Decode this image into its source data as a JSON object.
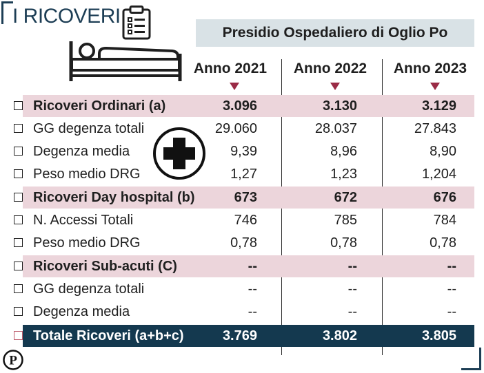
{
  "title": "I RICOVERI",
  "hospital": "Presidio Ospedaliero di Oglio Po",
  "years": [
    "Anno 2021",
    "Anno 2022",
    "Anno 2023"
  ],
  "rows": [
    {
      "label": "Ricoveri Ordinari (a)",
      "type": "sub",
      "values": [
        "3.096",
        "3.130",
        "3.129"
      ]
    },
    {
      "label": "GG degenza totali",
      "type": "item",
      "values": [
        "29.060",
        "28.037",
        "27.843"
      ]
    },
    {
      "label": "Degenza media",
      "type": "item",
      "values": [
        "9,39",
        "8,96",
        "8,90"
      ]
    },
    {
      "label": "Peso medio DRG",
      "type": "item",
      "values": [
        "1,27",
        "1,23",
        "1,204"
      ]
    },
    {
      "label": "Ricoveri Day hospital (b)",
      "type": "sub",
      "values": [
        "673",
        "672",
        "676"
      ]
    },
    {
      "label": "N. Accessi Totali",
      "type": "item",
      "values": [
        "746",
        "785",
        "784"
      ]
    },
    {
      "label": "Peso medio DRG",
      "type": "item",
      "values": [
        "0,78",
        "0,78",
        "0,78"
      ]
    },
    {
      "label": "Ricoveri Sub-acuti (C)",
      "type": "sub",
      "values": [
        "--",
        "--",
        "--"
      ]
    },
    {
      "label": "GG degenza totali",
      "type": "item",
      "values": [
        "--",
        "--",
        "--"
      ]
    },
    {
      "label": "Degenza media",
      "type": "item",
      "values": [
        "--",
        "--",
        "--"
      ]
    },
    {
      "label": "Totale Ricoveri (a+b+c)",
      "type": "total",
      "values": [
        "3.769",
        "3.802",
        "3.805"
      ]
    }
  ],
  "logo_letter": "P",
  "colors": {
    "accent": "#9a2b46",
    "navy": "#14394f",
    "sub_band": "#ecd5db",
    "header_band": "#d9e2e6"
  },
  "icons": [
    "clipboard-icon",
    "bed-icon",
    "medical-cross-icon",
    "publisher-logo-icon",
    "arrow-down-icon"
  ]
}
